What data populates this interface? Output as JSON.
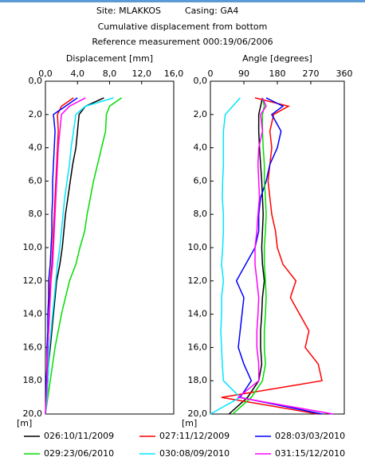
{
  "header": {
    "site": "Site: MLAKKOS",
    "casing": "Casing: GA4",
    "subtitle": "Cumulative displacement from bottom",
    "reference": "Reference measurement  000:19/06/2006"
  },
  "chart_data": [
    {
      "type": "line",
      "xlabel": "Displacement [mm]",
      "y_unit": "[m]",
      "y_inverted": true,
      "xlim": [
        0,
        16
      ],
      "xticks": [
        {
          "value": 0,
          "label": "0,0"
        },
        {
          "value": 4,
          "label": "4,0"
        },
        {
          "value": 8,
          "label": "8,0"
        },
        {
          "value": 12,
          "label": "12,0"
        },
        {
          "value": 16,
          "label": "16,0"
        }
      ],
      "ylim": [
        0,
        20
      ],
      "yticks": [
        {
          "value": 0,
          "label": "0,0"
        },
        {
          "value": 2,
          "label": "2,0"
        },
        {
          "value": 4,
          "label": "4,0"
        },
        {
          "value": 6,
          "label": "6,0"
        },
        {
          "value": 8,
          "label": "8,0"
        },
        {
          "value": 10,
          "label": "10,0"
        },
        {
          "value": 12,
          "label": "12,0"
        },
        {
          "value": 14,
          "label": "14,0"
        },
        {
          "value": 16,
          "label": "16,0"
        },
        {
          "value": 18,
          "label": "18,0"
        },
        {
          "value": 20,
          "label": "20,0"
        }
      ],
      "y": [
        1,
        1.5,
        2,
        3,
        4,
        5,
        6,
        7,
        8,
        9,
        10,
        11,
        12,
        13,
        14,
        15,
        16,
        17,
        18,
        19,
        20
      ],
      "series": [
        {
          "name": "026:10/11/2009",
          "color": "#000000",
          "values": [
            7.3,
            5.0,
            4.2,
            4.0,
            3.8,
            3.4,
            3.1,
            2.8,
            2.5,
            2.3,
            2.1,
            1.8,
            1.4,
            1.2,
            1.0,
            0.8,
            0.6,
            0.4,
            0.3,
            0.2,
            0
          ]
        },
        {
          "name": "027:11/12/2009",
          "color": "#ff0000",
          "values": [
            3.5,
            2.0,
            1.5,
            1.6,
            1.5,
            1.4,
            1.3,
            1.2,
            1.1,
            1.0,
            0.9,
            0.8,
            0.6,
            0.5,
            0.5,
            0.4,
            0.3,
            0.3,
            0.2,
            0.1,
            0
          ]
        },
        {
          "name": "028:03/03/2010",
          "color": "#0000ff",
          "values": [
            4.0,
            2.5,
            1.0,
            1.2,
            1.1,
            1.0,
            0.9,
            0.9,
            0.8,
            0.8,
            0.7,
            0.6,
            0.4,
            0.4,
            0.3,
            0.3,
            0.2,
            0.2,
            0.1,
            0.1,
            0
          ]
        },
        {
          "name": "029:23/06/2010",
          "color": "#00dd00",
          "values": [
            9.5,
            8.0,
            7.6,
            7.5,
            7.0,
            6.5,
            6.0,
            5.6,
            5.2,
            4.9,
            4.3,
            3.8,
            3.0,
            2.5,
            2.0,
            1.6,
            1.2,
            0.9,
            0.6,
            0.3,
            0
          ]
        },
        {
          "name": "030:08/09/2010",
          "color": "#00e5ff",
          "values": [
            8.5,
            5.0,
            3.8,
            3.5,
            3.2,
            3.0,
            2.7,
            2.4,
            2.2,
            2.0,
            1.8,
            1.5,
            1.3,
            1.1,
            0.9,
            0.7,
            0.5,
            0.4,
            0.3,
            0.2,
            0
          ]
        },
        {
          "name": "031:15/12/2010",
          "color": "#ff00ff",
          "values": [
            5.0,
            3.0,
            2.0,
            1.8,
            1.6,
            1.5,
            1.4,
            1.3,
            1.2,
            1.1,
            1.0,
            0.9,
            0.7,
            0.6,
            0.5,
            0.4,
            0.3,
            0.2,
            0.2,
            0.1,
            0
          ]
        }
      ]
    },
    {
      "type": "line",
      "xlabel": "Angle [degrees]",
      "y_unit": "[m]",
      "y_inverted": true,
      "xlim": [
        0,
        360
      ],
      "xticks": [
        0,
        90,
        180,
        270,
        360
      ],
      "ylim": [
        0,
        20
      ],
      "yticks": [
        {
          "value": 0,
          "label": "0,0"
        },
        {
          "value": 2,
          "label": "2,0"
        },
        {
          "value": 4,
          "label": "4,0"
        },
        {
          "value": 6,
          "label": "6,0"
        },
        {
          "value": 8,
          "label": "8,0"
        },
        {
          "value": 10,
          "label": "10,0"
        },
        {
          "value": 12,
          "label": "12,0"
        },
        {
          "value": 14,
          "label": "14,0"
        },
        {
          "value": 16,
          "label": "16,0"
        },
        {
          "value": 18,
          "label": "18,0"
        },
        {
          "value": 20,
          "label": "20,0"
        }
      ],
      "y": [
        1,
        1.5,
        2,
        3,
        4,
        5,
        6,
        7,
        8,
        9,
        10,
        11,
        12,
        13,
        14,
        15,
        16,
        17,
        18,
        19,
        20
      ],
      "series": [
        {
          "color": "#000000",
          "values": [
            140,
            135,
            130,
            130,
            132,
            135,
            138,
            140,
            142,
            140,
            138,
            140,
            145,
            140,
            138,
            135,
            135,
            138,
            130,
            100,
            50
          ]
        },
        {
          "color": "#ff0000",
          "values": [
            120,
            210,
            170,
            160,
            165,
            160,
            155,
            160,
            165,
            175,
            180,
            195,
            230,
            215,
            240,
            265,
            255,
            290,
            300,
            30,
            290
          ]
        },
        {
          "color": "#0000ff",
          "values": [
            150,
            195,
            165,
            190,
            180,
            160,
            150,
            135,
            130,
            130,
            120,
            95,
            70,
            90,
            85,
            80,
            75,
            90,
            110,
            80,
            300
          ]
        },
        {
          "color": "#00dd00",
          "values": [
            140,
            145,
            140,
            140,
            142,
            145,
            145,
            148,
            150,
            148,
            145,
            145,
            148,
            150,
            148,
            145,
            145,
            148,
            140,
            110,
            60
          ]
        },
        {
          "color": "#00e5ff",
          "values": [
            80,
            60,
            40,
            35,
            35,
            35,
            33,
            32,
            35,
            35,
            33,
            30,
            35,
            30,
            30,
            28,
            30,
            32,
            35,
            80,
            0
          ]
        },
        {
          "color": "#ff00ff",
          "values": [
            140,
            150,
            135,
            140,
            130,
            128,
            130,
            132,
            128,
            125,
            120,
            120,
            125,
            130,
            128,
            125,
            125,
            130,
            130,
            75,
            330
          ]
        }
      ]
    }
  ]
}
